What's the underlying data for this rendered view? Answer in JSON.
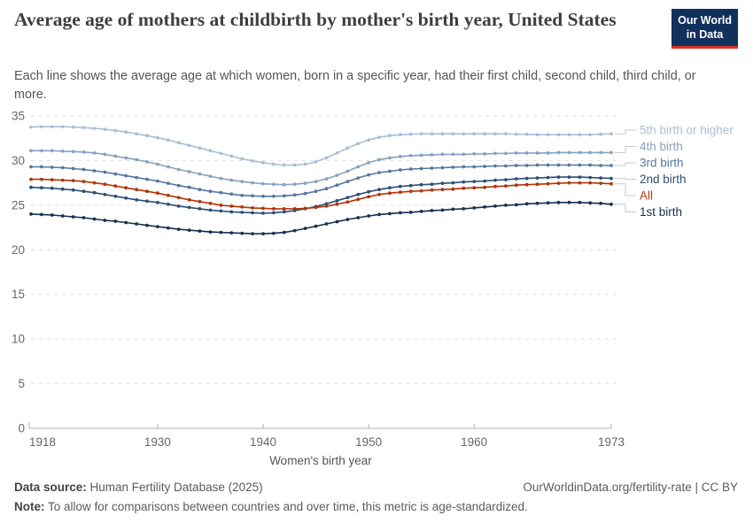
{
  "header": {
    "title": "Average age of mothers at childbirth by mother's birth year, United States",
    "subtitle": "Each line shows the average age at which women, born in a specific year, had their first child, second child, third child, or more.",
    "logo_line1": "Our World",
    "logo_line2": "in Data",
    "logo_bg": "#12305c",
    "logo_accent": "#dd3324"
  },
  "chart_data": {
    "type": "line",
    "title": "Average age of mothers at childbirth by mother's birth year, United States",
    "xlabel": "Women's birth year",
    "ylabel": "",
    "xlim": [
      1918,
      1973
    ],
    "ylim": [
      0,
      35
    ],
    "x_ticks": [
      1918,
      1930,
      1940,
      1950,
      1960,
      1973
    ],
    "y_ticks": [
      0,
      5,
      10,
      15,
      20,
      25,
      30,
      35
    ],
    "grid": "horizontal-dashed",
    "legend_position": "right-of-line-ends",
    "draw_last": "All",
    "x": [
      1918,
      1919,
      1920,
      1921,
      1922,
      1923,
      1924,
      1925,
      1926,
      1927,
      1928,
      1929,
      1930,
      1931,
      1932,
      1933,
      1934,
      1935,
      1936,
      1937,
      1938,
      1939,
      1940,
      1941,
      1942,
      1943,
      1944,
      1945,
      1946,
      1947,
      1948,
      1949,
      1950,
      1951,
      1952,
      1953,
      1954,
      1955,
      1956,
      1957,
      1958,
      1959,
      1960,
      1961,
      1962,
      1963,
      1964,
      1965,
      1966,
      1967,
      1968,
      1969,
      1970,
      1971,
      1972,
      1973
    ],
    "series": [
      {
        "name": "5th birth or higher",
        "color": "#a9bfd8",
        "values": [
          33.75,
          33.8,
          33.8,
          33.8,
          33.75,
          33.7,
          33.6,
          33.5,
          33.35,
          33.2,
          33.0,
          32.8,
          32.55,
          32.3,
          32.0,
          31.7,
          31.4,
          31.1,
          30.8,
          30.5,
          30.2,
          29.95,
          29.75,
          29.6,
          29.5,
          29.5,
          29.6,
          29.85,
          30.3,
          30.85,
          31.4,
          31.9,
          32.3,
          32.6,
          32.8,
          32.9,
          32.95,
          33.0,
          33.0,
          33.0,
          33.0,
          33.0,
          33.0,
          33.0,
          33.0,
          33.0,
          32.95,
          32.95,
          32.9,
          32.9,
          32.9,
          32.9,
          32.9,
          32.9,
          32.95,
          33.0
        ]
      },
      {
        "name": "4th birth",
        "color": "#86a2c2",
        "values": [
          31.1,
          31.1,
          31.1,
          31.05,
          31.0,
          30.95,
          30.85,
          30.7,
          30.5,
          30.3,
          30.1,
          29.85,
          29.6,
          29.3,
          29.0,
          28.75,
          28.5,
          28.25,
          28.0,
          27.8,
          27.65,
          27.5,
          27.4,
          27.35,
          27.3,
          27.35,
          27.45,
          27.65,
          27.95,
          28.35,
          28.8,
          29.3,
          29.75,
          30.1,
          30.3,
          30.45,
          30.55,
          30.6,
          30.65,
          30.7,
          30.7,
          30.7,
          30.75,
          30.75,
          30.8,
          30.8,
          30.85,
          30.85,
          30.85,
          30.85,
          30.9,
          30.9,
          30.9,
          30.9,
          30.9,
          30.9
        ]
      },
      {
        "name": "3rd birth",
        "color": "#56789f",
        "values": [
          29.3,
          29.3,
          29.25,
          29.2,
          29.1,
          29.0,
          28.85,
          28.7,
          28.5,
          28.3,
          28.1,
          27.9,
          27.7,
          27.45,
          27.2,
          27.0,
          26.75,
          26.55,
          26.4,
          26.25,
          26.1,
          26.05,
          26.0,
          26.0,
          26.05,
          26.15,
          26.3,
          26.55,
          26.85,
          27.25,
          27.65,
          28.05,
          28.4,
          28.65,
          28.8,
          28.95,
          29.05,
          29.1,
          29.15,
          29.2,
          29.25,
          29.3,
          29.3,
          29.35,
          29.4,
          29.4,
          29.45,
          29.45,
          29.5,
          29.5,
          29.5,
          29.5,
          29.5,
          29.5,
          29.45,
          29.45
        ]
      },
      {
        "name": "2nd birth",
        "color": "#2d4f74",
        "values": [
          27.0,
          26.95,
          26.9,
          26.8,
          26.7,
          26.55,
          26.4,
          26.2,
          26.0,
          25.8,
          25.6,
          25.45,
          25.3,
          25.1,
          24.9,
          24.75,
          24.6,
          24.45,
          24.35,
          24.25,
          24.2,
          24.15,
          24.1,
          24.15,
          24.25,
          24.4,
          24.6,
          24.85,
          25.15,
          25.5,
          25.85,
          26.2,
          26.5,
          26.75,
          26.95,
          27.1,
          27.2,
          27.3,
          27.35,
          27.45,
          27.5,
          27.6,
          27.65,
          27.7,
          27.8,
          27.85,
          27.95,
          28.0,
          28.05,
          28.1,
          28.15,
          28.15,
          28.15,
          28.1,
          28.05,
          28.0
        ]
      },
      {
        "name": "All",
        "color": "#b13507",
        "values": [
          27.9,
          27.9,
          27.85,
          27.8,
          27.75,
          27.65,
          27.5,
          27.35,
          27.15,
          26.95,
          26.75,
          26.55,
          26.35,
          26.1,
          25.85,
          25.6,
          25.4,
          25.2,
          25.0,
          24.9,
          24.8,
          24.7,
          24.65,
          24.6,
          24.6,
          24.6,
          24.65,
          24.75,
          24.9,
          25.1,
          25.35,
          25.65,
          25.95,
          26.2,
          26.35,
          26.45,
          26.55,
          26.6,
          26.7,
          26.75,
          26.8,
          26.9,
          26.95,
          27.0,
          27.1,
          27.15,
          27.25,
          27.3,
          27.35,
          27.4,
          27.45,
          27.5,
          27.5,
          27.5,
          27.45,
          27.4
        ]
      },
      {
        "name": "1st birth",
        "color": "#16304f",
        "values": [
          24.0,
          23.95,
          23.9,
          23.8,
          23.7,
          23.6,
          23.45,
          23.3,
          23.2,
          23.05,
          22.9,
          22.75,
          22.6,
          22.45,
          22.3,
          22.2,
          22.1,
          22.0,
          21.95,
          21.9,
          21.85,
          21.8,
          21.8,
          21.85,
          21.95,
          22.15,
          22.4,
          22.65,
          22.9,
          23.15,
          23.4,
          23.6,
          23.8,
          23.95,
          24.05,
          24.15,
          24.2,
          24.3,
          24.4,
          24.45,
          24.55,
          24.6,
          24.7,
          24.8,
          24.9,
          25.0,
          25.05,
          25.15,
          25.2,
          25.25,
          25.3,
          25.3,
          25.3,
          25.25,
          25.2,
          25.1
        ]
      }
    ]
  },
  "footer": {
    "datasource_label": "Data source:",
    "datasource_value": " Human Fertility Database (2025)",
    "url_text": "OurWorldinData.org/fertility-rate | CC BY",
    "note_label": "Note:",
    "note_value": " To allow for comparisons between countries and over time, this metric is age-standardized."
  }
}
